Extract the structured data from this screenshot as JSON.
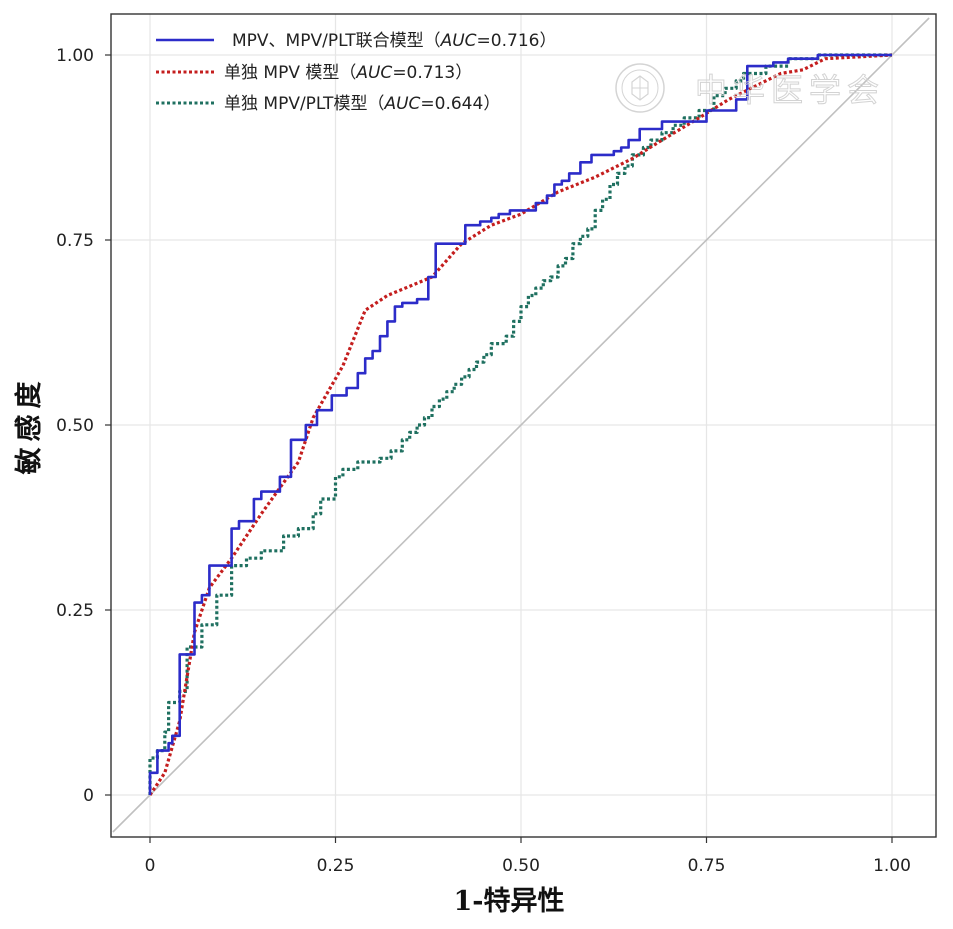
{
  "chart_data": {
    "type": "line",
    "title": "",
    "xlabel": "1-特异性",
    "ylabel": "敏感度",
    "xlim": [
      0,
      1
    ],
    "ylim": [
      0,
      1
    ],
    "x_ticks": [
      {
        "value": 0,
        "label": "0"
      },
      {
        "value": 0.25,
        "label": "0.25"
      },
      {
        "value": 0.5,
        "label": "0.50"
      },
      {
        "value": 0.75,
        "label": "0.75"
      },
      {
        "value": 1,
        "label": "1.00"
      }
    ],
    "y_ticks": [
      {
        "value": 0,
        "label": "0"
      },
      {
        "value": 0.25,
        "label": "0.25"
      },
      {
        "value": 0.5,
        "label": "0.50"
      },
      {
        "value": 0.75,
        "label": "0.75"
      },
      {
        "value": 1,
        "label": "1.00"
      }
    ],
    "grid": true,
    "legend_position": "top-left",
    "reference_line": {
      "x": [
        -0.05,
        1.05
      ],
      "y": [
        -0.05,
        1.05
      ],
      "color": "#c0c0c0"
    },
    "series": [
      {
        "name": "MPV、MPV/PLT联合模型",
        "auc_prefix": "AUC",
        "auc_value": "=0.716",
        "color": "#2c2cc9",
        "style": "solid",
        "step": true,
        "points": [
          [
            0,
            0
          ],
          [
            0,
            0.03
          ],
          [
            0.01,
            0.03
          ],
          [
            0.01,
            0.06
          ],
          [
            0.025,
            0.06
          ],
          [
            0.025,
            0.07
          ],
          [
            0.03,
            0.07
          ],
          [
            0.03,
            0.08
          ],
          [
            0.04,
            0.08
          ],
          [
            0.04,
            0.19
          ],
          [
            0.06,
            0.19
          ],
          [
            0.06,
            0.26
          ],
          [
            0.07,
            0.26
          ],
          [
            0.07,
            0.27
          ],
          [
            0.08,
            0.27
          ],
          [
            0.08,
            0.31
          ],
          [
            0.11,
            0.31
          ],
          [
            0.11,
            0.36
          ],
          [
            0.12,
            0.36
          ],
          [
            0.12,
            0.37
          ],
          [
            0.14,
            0.37
          ],
          [
            0.14,
            0.4
          ],
          [
            0.15,
            0.4
          ],
          [
            0.15,
            0.41
          ],
          [
            0.175,
            0.41
          ],
          [
            0.175,
            0.43
          ],
          [
            0.19,
            0.43
          ],
          [
            0.19,
            0.48
          ],
          [
            0.21,
            0.48
          ],
          [
            0.21,
            0.5
          ],
          [
            0.225,
            0.5
          ],
          [
            0.225,
            0.52
          ],
          [
            0.245,
            0.52
          ],
          [
            0.245,
            0.54
          ],
          [
            0.265,
            0.54
          ],
          [
            0.265,
            0.55
          ],
          [
            0.28,
            0.55
          ],
          [
            0.28,
            0.57
          ],
          [
            0.29,
            0.57
          ],
          [
            0.29,
            0.59
          ],
          [
            0.3,
            0.59
          ],
          [
            0.3,
            0.6
          ],
          [
            0.31,
            0.6
          ],
          [
            0.31,
            0.62
          ],
          [
            0.32,
            0.62
          ],
          [
            0.32,
            0.64
          ],
          [
            0.33,
            0.64
          ],
          [
            0.33,
            0.66
          ],
          [
            0.34,
            0.66
          ],
          [
            0.34,
            0.665
          ],
          [
            0.36,
            0.665
          ],
          [
            0.36,
            0.67
          ],
          [
            0.375,
            0.67
          ],
          [
            0.375,
            0.7
          ],
          [
            0.385,
            0.7
          ],
          [
            0.385,
            0.745
          ],
          [
            0.425,
            0.745
          ],
          [
            0.425,
            0.77
          ],
          [
            0.445,
            0.77
          ],
          [
            0.445,
            0.775
          ],
          [
            0.46,
            0.775
          ],
          [
            0.46,
            0.78
          ],
          [
            0.47,
            0.78
          ],
          [
            0.47,
            0.785
          ],
          [
            0.485,
            0.785
          ],
          [
            0.485,
            0.79
          ],
          [
            0.52,
            0.79
          ],
          [
            0.52,
            0.8
          ],
          [
            0.535,
            0.8
          ],
          [
            0.535,
            0.81
          ],
          [
            0.545,
            0.81
          ],
          [
            0.545,
            0.825
          ],
          [
            0.555,
            0.825
          ],
          [
            0.555,
            0.83
          ],
          [
            0.565,
            0.83
          ],
          [
            0.565,
            0.84
          ],
          [
            0.58,
            0.84
          ],
          [
            0.58,
            0.855
          ],
          [
            0.595,
            0.855
          ],
          [
            0.595,
            0.865
          ],
          [
            0.625,
            0.865
          ],
          [
            0.625,
            0.87
          ],
          [
            0.635,
            0.87
          ],
          [
            0.635,
            0.875
          ],
          [
            0.645,
            0.875
          ],
          [
            0.645,
            0.885
          ],
          [
            0.66,
            0.885
          ],
          [
            0.66,
            0.9
          ],
          [
            0.69,
            0.9
          ],
          [
            0.69,
            0.91
          ],
          [
            0.75,
            0.91
          ],
          [
            0.75,
            0.925
          ],
          [
            0.79,
            0.925
          ],
          [
            0.79,
            0.94
          ],
          [
            0.805,
            0.94
          ],
          [
            0.805,
            0.985
          ],
          [
            0.84,
            0.985
          ],
          [
            0.84,
            0.99
          ],
          [
            0.86,
            0.99
          ],
          [
            0.86,
            0.995
          ],
          [
            0.9,
            0.995
          ],
          [
            0.9,
            1.0
          ],
          [
            1.0,
            1.0
          ]
        ]
      },
      {
        "name": "单独 MPV 模型",
        "auc_prefix": "AUC",
        "auc_value": "=0.713",
        "color": "#c41e1e",
        "style": "dotted",
        "step": false,
        "points": [
          [
            0,
            0
          ],
          [
            0.02,
            0.03
          ],
          [
            0.04,
            0.1
          ],
          [
            0.06,
            0.22
          ],
          [
            0.08,
            0.28
          ],
          [
            0.11,
            0.32
          ],
          [
            0.15,
            0.38
          ],
          [
            0.2,
            0.45
          ],
          [
            0.22,
            0.51
          ],
          [
            0.26,
            0.58
          ],
          [
            0.29,
            0.655
          ],
          [
            0.32,
            0.675
          ],
          [
            0.38,
            0.7
          ],
          [
            0.42,
            0.745
          ],
          [
            0.46,
            0.77
          ],
          [
            0.5,
            0.785
          ],
          [
            0.55,
            0.815
          ],
          [
            0.6,
            0.835
          ],
          [
            0.65,
            0.86
          ],
          [
            0.69,
            0.885
          ],
          [
            0.74,
            0.915
          ],
          [
            0.78,
            0.94
          ],
          [
            0.82,
            0.96
          ],
          [
            0.85,
            0.975
          ],
          [
            0.88,
            0.98
          ],
          [
            0.91,
            0.995
          ],
          [
            1.0,
            1.0
          ]
        ]
      },
      {
        "name": "单独 MPV/PLT模型",
        "auc_prefix": "AUC",
        "auc_value": "=0.644",
        "color": "#1f7060",
        "style": "dotted",
        "step": true,
        "points": [
          [
            0,
            0
          ],
          [
            0,
            0.05
          ],
          [
            0.01,
            0.05
          ],
          [
            0.01,
            0.06
          ],
          [
            0.02,
            0.06
          ],
          [
            0.02,
            0.085
          ],
          [
            0.025,
            0.085
          ],
          [
            0.025,
            0.125
          ],
          [
            0.04,
            0.125
          ],
          [
            0.04,
            0.14
          ],
          [
            0.05,
            0.14
          ],
          [
            0.05,
            0.2
          ],
          [
            0.07,
            0.2
          ],
          [
            0.07,
            0.23
          ],
          [
            0.09,
            0.23
          ],
          [
            0.09,
            0.27
          ],
          [
            0.11,
            0.27
          ],
          [
            0.11,
            0.31
          ],
          [
            0.13,
            0.31
          ],
          [
            0.13,
            0.32
          ],
          [
            0.15,
            0.32
          ],
          [
            0.15,
            0.33
          ],
          [
            0.18,
            0.33
          ],
          [
            0.18,
            0.35
          ],
          [
            0.2,
            0.35
          ],
          [
            0.2,
            0.36
          ],
          [
            0.22,
            0.36
          ],
          [
            0.22,
            0.38
          ],
          [
            0.23,
            0.38
          ],
          [
            0.23,
            0.4
          ],
          [
            0.25,
            0.4
          ],
          [
            0.25,
            0.43
          ],
          [
            0.26,
            0.43
          ],
          [
            0.26,
            0.44
          ],
          [
            0.28,
            0.44
          ],
          [
            0.28,
            0.45
          ],
          [
            0.31,
            0.45
          ],
          [
            0.31,
            0.455
          ],
          [
            0.325,
            0.455
          ],
          [
            0.325,
            0.465
          ],
          [
            0.34,
            0.465
          ],
          [
            0.34,
            0.48
          ],
          [
            0.35,
            0.48
          ],
          [
            0.35,
            0.49
          ],
          [
            0.36,
            0.49
          ],
          [
            0.36,
            0.5
          ],
          [
            0.37,
            0.5
          ],
          [
            0.37,
            0.51
          ],
          [
            0.38,
            0.51
          ],
          [
            0.38,
            0.525
          ],
          [
            0.39,
            0.525
          ],
          [
            0.39,
            0.535
          ],
          [
            0.4,
            0.535
          ],
          [
            0.4,
            0.545
          ],
          [
            0.41,
            0.545
          ],
          [
            0.41,
            0.555
          ],
          [
            0.42,
            0.555
          ],
          [
            0.42,
            0.565
          ],
          [
            0.43,
            0.565
          ],
          [
            0.43,
            0.575
          ],
          [
            0.44,
            0.575
          ],
          [
            0.44,
            0.585
          ],
          [
            0.45,
            0.585
          ],
          [
            0.45,
            0.595
          ],
          [
            0.46,
            0.595
          ],
          [
            0.46,
            0.61
          ],
          [
            0.48,
            0.61
          ],
          [
            0.48,
            0.62
          ],
          [
            0.49,
            0.62
          ],
          [
            0.49,
            0.64
          ],
          [
            0.5,
            0.64
          ],
          [
            0.5,
            0.66
          ],
          [
            0.51,
            0.66
          ],
          [
            0.51,
            0.675
          ],
          [
            0.52,
            0.675
          ],
          [
            0.52,
            0.685
          ],
          [
            0.53,
            0.685
          ],
          [
            0.53,
            0.695
          ],
          [
            0.54,
            0.695
          ],
          [
            0.54,
            0.7
          ],
          [
            0.55,
            0.7
          ],
          [
            0.55,
            0.715
          ],
          [
            0.56,
            0.715
          ],
          [
            0.56,
            0.725
          ],
          [
            0.57,
            0.725
          ],
          [
            0.57,
            0.745
          ],
          [
            0.58,
            0.745
          ],
          [
            0.58,
            0.755
          ],
          [
            0.59,
            0.755
          ],
          [
            0.59,
            0.765
          ],
          [
            0.6,
            0.765
          ],
          [
            0.6,
            0.79
          ],
          [
            0.61,
            0.79
          ],
          [
            0.61,
            0.805
          ],
          [
            0.62,
            0.805
          ],
          [
            0.62,
            0.825
          ],
          [
            0.63,
            0.825
          ],
          [
            0.63,
            0.84
          ],
          [
            0.64,
            0.84
          ],
          [
            0.64,
            0.85
          ],
          [
            0.65,
            0.85
          ],
          [
            0.65,
            0.865
          ],
          [
            0.665,
            0.865
          ],
          [
            0.665,
            0.875
          ],
          [
            0.675,
            0.875
          ],
          [
            0.675,
            0.885
          ],
          [
            0.69,
            0.885
          ],
          [
            0.69,
            0.895
          ],
          [
            0.705,
            0.895
          ],
          [
            0.705,
            0.905
          ],
          [
            0.72,
            0.905
          ],
          [
            0.72,
            0.915
          ],
          [
            0.74,
            0.915
          ],
          [
            0.74,
            0.925
          ],
          [
            0.76,
            0.925
          ],
          [
            0.76,
            0.945
          ],
          [
            0.775,
            0.945
          ],
          [
            0.775,
            0.955
          ],
          [
            0.79,
            0.955
          ],
          [
            0.79,
            0.965
          ],
          [
            0.8,
            0.965
          ],
          [
            0.8,
            0.975
          ],
          [
            0.83,
            0.975
          ],
          [
            0.83,
            0.985
          ],
          [
            0.86,
            0.985
          ],
          [
            0.86,
            0.995
          ],
          [
            0.9,
            0.995
          ],
          [
            0.9,
            1.0
          ],
          [
            1.0,
            1.0
          ]
        ]
      }
    ]
  },
  "watermark": {
    "text": "中华医学会",
    "seal_icon": "seal-logo-icon"
  }
}
